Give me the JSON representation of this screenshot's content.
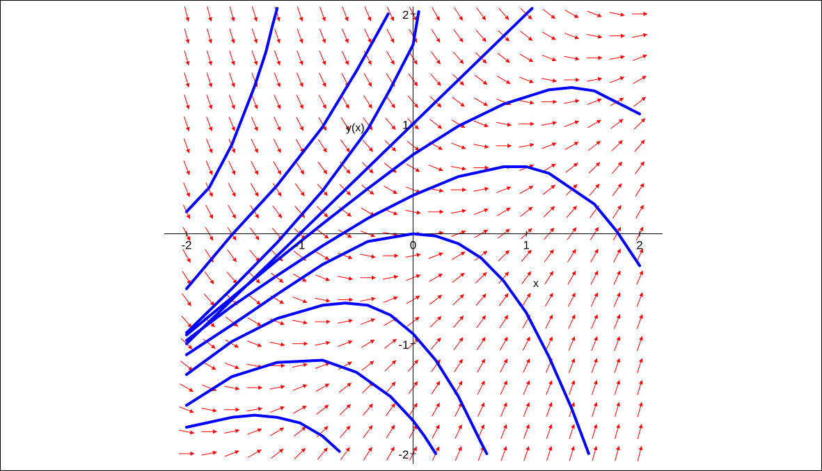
{
  "chart_data": {
    "type": "line",
    "subtype": "direction-field",
    "xlabel": "x",
    "ylabel": "y(x)",
    "xlim": [
      -2,
      2
    ],
    "ylim": [
      -2,
      2
    ],
    "x_ticks": [
      {
        "value": -2,
        "label": "-2"
      },
      {
        "value": -1,
        "label": "-1"
      },
      {
        "value": 0,
        "label": "0"
      },
      {
        "value": 1,
        "label": "1"
      },
      {
        "value": 2,
        "label": "2"
      }
    ],
    "y_ticks": [
      {
        "value": -2,
        "label": "-2"
      },
      {
        "value": -1,
        "label": "-1"
      },
      {
        "value": 1,
        "label": "1"
      },
      {
        "value": 2,
        "label": "2"
      }
    ],
    "field": {
      "dx": 1,
      "dy_formula": "x - y",
      "x_range": [
        -2,
        2
      ],
      "y_range": [
        -2,
        2
      ],
      "samples_x": 21,
      "samples_y": 21,
      "color": "#ff0000"
    },
    "curve_color": "#0000ff",
    "series": [
      {
        "values": [
          [
            -2.0,
            0.2
          ],
          [
            -1.8,
            0.42
          ],
          [
            -1.6,
            0.81
          ],
          [
            -1.4,
            1.34
          ],
          [
            -1.3,
            1.65
          ],
          [
            -1.24,
            1.9
          ],
          [
            -1.2,
            2.05
          ]
        ]
      },
      {
        "values": [
          [
            -2.0,
            -0.5
          ],
          [
            -1.6,
            -0.01
          ],
          [
            -1.2,
            0.44
          ],
          [
            -0.8,
            0.97
          ],
          [
            -0.5,
            1.48
          ],
          [
            -0.3,
            1.85
          ],
          [
            -0.22,
            2.0
          ]
        ]
      },
      {
        "values": [
          [
            -2.0,
            -0.9
          ],
          [
            -1.6,
            -0.5
          ],
          [
            -1.2,
            -0.08
          ],
          [
            -0.8,
            0.39
          ],
          [
            -0.4,
            0.95
          ],
          [
            -0.2,
            1.32
          ],
          [
            0.0,
            1.72
          ],
          [
            0.05,
            2.02
          ]
        ]
      },
      {
        "values": [
          [
            -2.0,
            -1.0
          ],
          [
            -1.0,
            0.0
          ],
          [
            0.0,
            1.0
          ],
          [
            1.0,
            2.0
          ],
          [
            1.05,
            2.05
          ]
        ]
      },
      {
        "values": [
          [
            -2.0,
            -0.92
          ],
          [
            -1.6,
            -0.58
          ],
          [
            -1.2,
            -0.24
          ],
          [
            -0.8,
            0.09
          ],
          [
            -0.4,
            0.41
          ],
          [
            0.0,
            0.72
          ],
          [
            0.4,
            0.98
          ],
          [
            0.8,
            1.18
          ],
          [
            1.2,
            1.31
          ],
          [
            1.4,
            1.33
          ],
          [
            1.6,
            1.3
          ],
          [
            2.0,
            1.09
          ]
        ]
      },
      {
        "values": [
          [
            -2.0,
            -0.97
          ],
          [
            -1.6,
            -0.66
          ],
          [
            -1.2,
            -0.38
          ],
          [
            -0.8,
            -0.11
          ],
          [
            -0.4,
            0.14
          ],
          [
            0.0,
            0.35
          ],
          [
            0.4,
            0.52
          ],
          [
            0.8,
            0.61
          ],
          [
            1.0,
            0.61
          ],
          [
            1.2,
            0.55
          ],
          [
            1.6,
            0.27
          ],
          [
            1.8,
            0.02
          ],
          [
            2.0,
            -0.29
          ]
        ]
      },
      {
        "values": [
          [
            -2.0,
            -1.1
          ],
          [
            -1.6,
            -0.83
          ],
          [
            -1.2,
            -0.55
          ],
          [
            -0.8,
            -0.28
          ],
          [
            -0.4,
            -0.07
          ],
          [
            0.0,
            0.0
          ],
          [
            0.2,
            -0.02
          ],
          [
            0.4,
            -0.09
          ],
          [
            0.6,
            -0.22
          ],
          [
            0.8,
            -0.43
          ],
          [
            1.0,
            -0.72
          ],
          [
            1.2,
            -1.12
          ],
          [
            1.4,
            -1.59
          ],
          [
            1.55,
            -2.0
          ]
        ]
      },
      {
        "values": [
          [
            -2.0,
            -1.28
          ],
          [
            -1.6,
            -0.98
          ],
          [
            -1.2,
            -0.77
          ],
          [
            -0.8,
            -0.65
          ],
          [
            -0.6,
            -0.63
          ],
          [
            -0.4,
            -0.65
          ],
          [
            -0.2,
            -0.74
          ],
          [
            0.0,
            -0.91
          ],
          [
            0.2,
            -1.15
          ],
          [
            0.4,
            -1.48
          ],
          [
            0.6,
            -1.9
          ],
          [
            0.65,
            -2.0
          ]
        ]
      },
      {
        "values": [
          [
            -2.0,
            -1.56
          ],
          [
            -1.6,
            -1.3
          ],
          [
            -1.2,
            -1.17
          ],
          [
            -0.8,
            -1.15
          ],
          [
            -0.5,
            -1.26
          ],
          [
            -0.2,
            -1.48
          ],
          [
            0.0,
            -1.7
          ],
          [
            0.1,
            -1.84
          ],
          [
            0.2,
            -2.0
          ]
        ]
      },
      {
        "values": [
          [
            -2.0,
            -1.76
          ],
          [
            -1.6,
            -1.67
          ],
          [
            -1.4,
            -1.65
          ],
          [
            -1.2,
            -1.67
          ],
          [
            -1.0,
            -1.72
          ],
          [
            -0.8,
            -1.84
          ],
          [
            -0.65,
            -1.98
          ]
        ]
      }
    ]
  }
}
